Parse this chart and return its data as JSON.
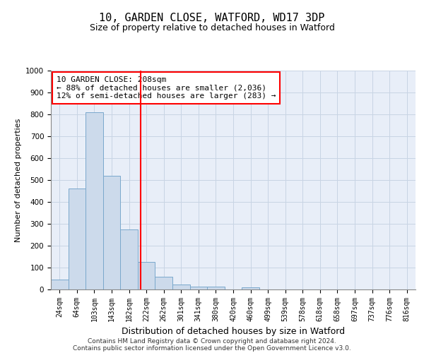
{
  "title1": "10, GARDEN CLOSE, WATFORD, WD17 3DP",
  "title2": "Size of property relative to detached houses in Watford",
  "xlabel": "Distribution of detached houses by size in Watford",
  "ylabel": "Number of detached properties",
  "footer1": "Contains HM Land Registry data © Crown copyright and database right 2024.",
  "footer2": "Contains public sector information licensed under the Open Government Licence v3.0.",
  "categories": [
    "24sqm",
    "64sqm",
    "103sqm",
    "143sqm",
    "182sqm",
    "222sqm",
    "262sqm",
    "301sqm",
    "341sqm",
    "380sqm",
    "420sqm",
    "460sqm",
    "499sqm",
    "539sqm",
    "578sqm",
    "618sqm",
    "658sqm",
    "697sqm",
    "737sqm",
    "776sqm",
    "816sqm"
  ],
  "values": [
    45,
    460,
    810,
    520,
    275,
    125,
    58,
    22,
    12,
    12,
    0,
    10,
    0,
    0,
    0,
    0,
    0,
    0,
    0,
    0,
    0
  ],
  "bar_color": "#ccdaeb",
  "bar_edge_color": "#7aa8cc",
  "ylim": [
    0,
    1000
  ],
  "yticks": [
    0,
    100,
    200,
    300,
    400,
    500,
    600,
    700,
    800,
    900,
    1000
  ],
  "property_label": "10 GARDEN CLOSE: 208sqm",
  "annotation_line1": "← 88% of detached houses are smaller (2,036)",
  "annotation_line2": "12% of semi-detached houses are larger (283) →",
  "grid_color": "#c8d4e4",
  "background_color": "#e8eef8",
  "title1_fontsize": 11,
  "title2_fontsize": 9,
  "xlabel_fontsize": 9,
  "ylabel_fontsize": 8,
  "tick_fontsize": 7,
  "annot_fontsize": 8,
  "footer_fontsize": 6.5
}
